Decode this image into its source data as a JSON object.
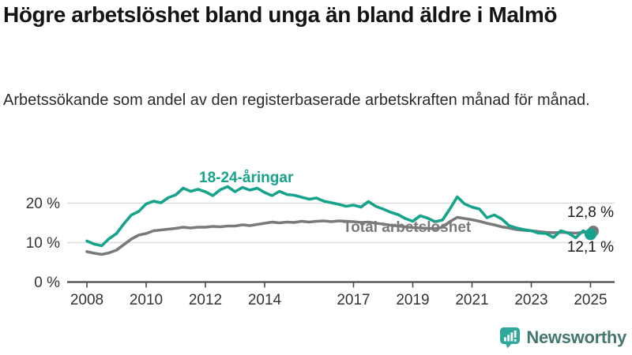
{
  "header": {
    "title": "Högre arbetslöshet bland unga än bland äldre i Malmö",
    "subtitle": "Arbetssökande som andel av den registerbaserade arbetskraften månad för månad."
  },
  "footer": {
    "brand": "Newsworthy"
  },
  "chart_data": {
    "type": "line",
    "title": "Högre arbetslöshet bland unga än bland äldre i Malmö",
    "subtitle": "Arbetssökande som andel av den registerbaserade arbetskraften månad för månad.",
    "x_unit": "year (decimal, quarterly readings of a monthly series)",
    "x": [
      2008,
      2008.25,
      2008.5,
      2008.75,
      2009,
      2009.25,
      2009.5,
      2009.75,
      2010,
      2010.25,
      2010.5,
      2010.75,
      2011,
      2011.25,
      2011.5,
      2011.75,
      2012,
      2012.25,
      2012.5,
      2012.75,
      2013,
      2013.25,
      2013.5,
      2013.75,
      2014,
      2014.25,
      2014.5,
      2014.75,
      2015,
      2015.25,
      2015.5,
      2015.75,
      2016,
      2016.25,
      2016.5,
      2016.75,
      2017,
      2017.25,
      2017.5,
      2017.75,
      2018,
      2018.25,
      2018.5,
      2018.75,
      2019,
      2019.25,
      2019.5,
      2019.75,
      2020,
      2020.25,
      2020.5,
      2020.75,
      2021,
      2021.25,
      2021.5,
      2021.75,
      2022,
      2022.25,
      2022.5,
      2022.75,
      2023,
      2023.25,
      2023.5,
      2023.75,
      2024,
      2024.25,
      2024.5,
      2024.75,
      2025
    ],
    "series": [
      {
        "name": "18-24-åringar",
        "color": "#16a38c",
        "values": [
          10.4,
          9.6,
          9.2,
          11.0,
          12.3,
          14.8,
          17.0,
          17.9,
          19.8,
          20.5,
          20.1,
          21.4,
          22.1,
          23.8,
          23.0,
          23.5,
          22.9,
          21.9,
          23.4,
          24.2,
          22.9,
          24.0,
          23.3,
          23.8,
          22.7,
          21.9,
          23.0,
          22.2,
          22.0,
          21.5,
          21.0,
          21.3,
          20.5,
          20.1,
          19.7,
          19.2,
          19.5,
          19.0,
          20.4,
          19.2,
          18.5,
          17.7,
          17.1,
          16.1,
          15.4,
          16.8,
          16.2,
          15.3,
          15.7,
          18.5,
          21.6,
          19.8,
          19.0,
          18.5,
          16.3,
          17.0,
          16.0,
          14.3,
          13.7,
          13.3,
          13.0,
          12.4,
          12.3,
          11.3,
          13.0,
          12.4,
          11.2,
          13.0,
          12.1
        ]
      },
      {
        "name": "Total arbetslöshet",
        "color": "#7a7a7a",
        "values": [
          7.7,
          7.3,
          7.0,
          7.4,
          8.1,
          9.5,
          10.9,
          11.9,
          12.3,
          13.0,
          13.2,
          13.4,
          13.6,
          13.9,
          13.7,
          13.9,
          13.9,
          14.1,
          14.0,
          14.2,
          14.2,
          14.5,
          14.3,
          14.6,
          14.9,
          15.2,
          15.0,
          15.2,
          15.1,
          15.4,
          15.2,
          15.4,
          15.5,
          15.3,
          15.5,
          15.4,
          15.3,
          15.1,
          15.2,
          14.9,
          14.7,
          14.4,
          14.2,
          14.0,
          13.8,
          13.7,
          13.6,
          13.5,
          13.9,
          15.3,
          16.4,
          16.1,
          15.8,
          15.4,
          14.9,
          14.5,
          14.0,
          13.7,
          13.3,
          13.1,
          13.0,
          12.8,
          12.6,
          12.5,
          12.6,
          12.5,
          12.4,
          12.6,
          12.8
        ]
      }
    ],
    "x_tick_labels": [
      "2008",
      "2010",
      "2012",
      "2014",
      "2017",
      "2019",
      "2021",
      "2023",
      "2025"
    ],
    "x_ticks": [
      2008,
      2010,
      2012,
      2014,
      2017,
      2019,
      2021,
      2023,
      2025
    ],
    "y_ticks": [
      0,
      10,
      20
    ],
    "y_tick_labels": [
      "0 %",
      "10 %",
      "20 %"
    ],
    "ylim": [
      0,
      26
    ],
    "xlim": [
      2007.3,
      2025.8
    ],
    "grid": "horizontal",
    "legend_position": "inline-labels",
    "series_labels": {
      "young": "18-24-åringar",
      "total": "Total arbetslöshet"
    },
    "end_labels": {
      "total": "12,8 %",
      "young": "12,1 %"
    },
    "colors": {
      "young": "#16a38c",
      "total": "#7a7a7a",
      "grid": "#dcdcdc",
      "axis": "#4a4a4a",
      "tick_text": "#333333",
      "end_label_text": "#1a1a1a"
    }
  }
}
